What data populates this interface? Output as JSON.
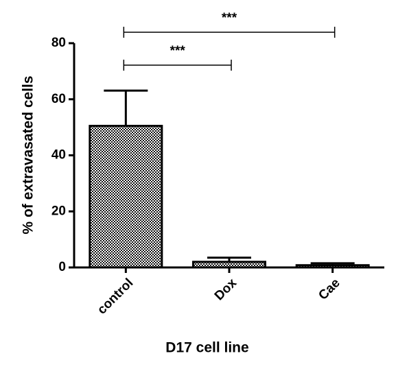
{
  "chart_data": {
    "type": "bar",
    "categories": [
      "control",
      "Dox",
      "Cae"
    ],
    "values": [
      50.5,
      2,
      0.8
    ],
    "errors": [
      12.6,
      1.5,
      0.7
    ],
    "color": "#000000",
    "ylim": [
      0,
      80
    ],
    "yticks": [
      0,
      20,
      40,
      60,
      80
    ],
    "xlabel": "D17 cell line",
    "ylabel": "% of extravasated cells",
    "annotations": [
      "***",
      "***"
    ]
  }
}
